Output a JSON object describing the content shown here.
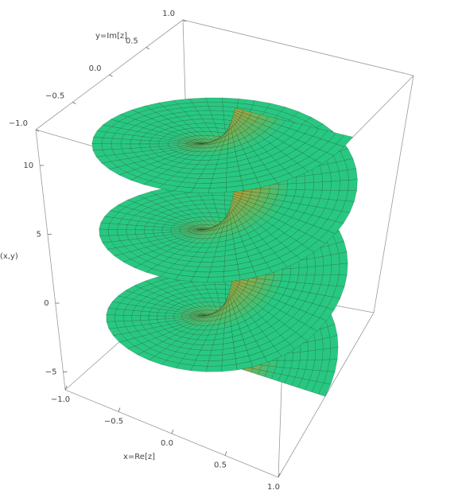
{
  "chart_data": {
    "type": "surface3d",
    "xlabel": "x=Re[z]",
    "ylabel": "y=Im[z]",
    "zlabel": "v(x,y)",
    "xlim": [
      -1,
      1
    ],
    "ylim": [
      -1,
      1
    ],
    "zlim": [
      -6.3,
      12.6
    ],
    "xticks": [
      {
        "value": -1,
        "label": "−1.0"
      },
      {
        "value": -0.5,
        "label": "−0.5"
      },
      {
        "value": 0,
        "label": "0.0"
      },
      {
        "value": 0.5,
        "label": "0.5"
      },
      {
        "value": 1,
        "label": "1.0"
      }
    ],
    "yticks": [
      {
        "value": -1,
        "label": "−1.0"
      },
      {
        "value": -0.5,
        "label": "−0.5"
      },
      {
        "value": 0,
        "label": "0.0"
      },
      {
        "value": 0.5,
        "label": "0.5"
      },
      {
        "value": 1,
        "label": "1.0"
      }
    ],
    "zticks": [
      {
        "value": -5,
        "label": "−5"
      },
      0,
      5,
      10
    ]
  }
}
